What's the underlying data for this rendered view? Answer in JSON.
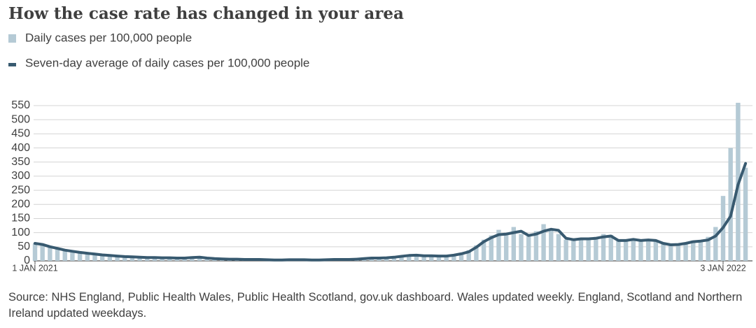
{
  "chart_data": {
    "type": "bar",
    "title": "How the case rate has changed in your area",
    "source": "Source: NHS England, Public Health Wales, Public Health Scotland, gov.uk dashboard. Wales updated weekly. England, Scotland and Northern Ireland updated weekdays.",
    "categories": [
      "1 JAN 2021",
      null,
      null,
      null,
      null,
      null,
      null,
      null,
      null,
      null,
      null,
      null,
      null,
      null,
      null,
      null,
      null,
      null,
      null,
      null,
      null,
      null,
      null,
      null,
      null,
      null,
      null,
      null,
      null,
      null,
      null,
      null,
      null,
      null,
      null,
      null,
      null,
      null,
      null,
      null,
      null,
      null,
      null,
      null,
      null,
      null,
      null,
      null,
      null,
      null,
      null,
      null,
      null,
      null,
      null,
      null,
      null,
      null,
      null,
      null,
      null,
      null,
      null,
      null,
      null,
      null,
      null,
      null,
      null,
      null,
      null,
      null,
      null,
      null,
      null,
      null,
      null,
      null,
      null,
      null,
      null,
      null,
      null,
      null,
      null,
      null,
      null,
      null,
      null,
      null,
      null,
      null,
      "3 JAN 2022",
      null,
      null,
      null
    ],
    "series": [
      {
        "name": "Daily cases per 100,000 people",
        "type": "bar",
        "color": "#b5cad5",
        "values": [
          62,
          55,
          48,
          42,
          36,
          33,
          29,
          26,
          22,
          20,
          18,
          16,
          15,
          13,
          12,
          12,
          11,
          10,
          11,
          10,
          11,
          13,
          12,
          9,
          7,
          7,
          6,
          5,
          5,
          5,
          4,
          4,
          3,
          3,
          4,
          4,
          3,
          3,
          3,
          4,
          5,
          5,
          5,
          7,
          9,
          10,
          10,
          12,
          14,
          17,
          20,
          19,
          18,
          17,
          16,
          18,
          22,
          28,
          38,
          55,
          75,
          90,
          110,
          100,
          120,
          95,
          88,
          105,
          130,
          115,
          95,
          75,
          80,
          82,
          76,
          85,
          95,
          92,
          70,
          75,
          80,
          70,
          78,
          68,
          60,
          55,
          60,
          65,
          72,
          70,
          85,
          120,
          230,
          400,
          560,
          330
        ]
      },
      {
        "name": "Seven-day average of daily cases per 100,000 people",
        "type": "line",
        "color": "#385a70",
        "values": [
          62,
          58,
          50,
          44,
          38,
          34,
          30,
          27,
          24,
          21,
          19,
          17,
          15,
          14,
          13,
          12,
          12,
          11,
          11,
          10,
          10,
          12,
          13,
          10,
          8,
          7,
          6,
          6,
          5,
          5,
          5,
          4,
          3,
          3,
          4,
          4,
          4,
          3,
          3,
          4,
          5,
          5,
          5,
          6,
          8,
          10,
          10,
          11,
          13,
          16,
          19,
          20,
          18,
          18,
          17,
          17,
          20,
          25,
          32,
          48,
          68,
          82,
          93,
          95,
          100,
          105,
          90,
          95,
          105,
          112,
          108,
          80,
          75,
          78,
          78,
          80,
          85,
          88,
          72,
          72,
          76,
          72,
          74,
          72,
          62,
          57,
          58,
          62,
          68,
          70,
          74,
          88,
          118,
          158,
          270,
          345
        ]
      }
    ],
    "ylim": [
      0,
      550
    ],
    "yticks": [
      0,
      50,
      100,
      150,
      200,
      250,
      300,
      350,
      400,
      450,
      500,
      550
    ],
    "grid": true
  }
}
